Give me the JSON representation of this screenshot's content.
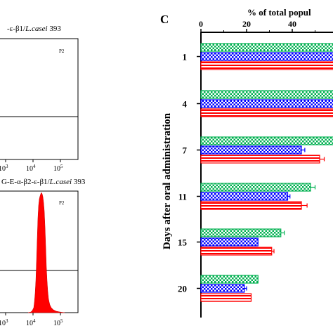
{
  "left_panel": {
    "top_title_prefix": "-ε-β1/",
    "top_title_species": "L.casei",
    "top_title_strain": " 393",
    "top_gate_label": "P2",
    "top_xticks": [
      {
        "base": "10",
        "exp": "3"
      },
      {
        "base": "10",
        "exp": "4"
      },
      {
        "base": "10",
        "exp": "5"
      }
    ],
    "bottom_title_prefix": "G-E-α-β2-ε-β1/",
    "bottom_title_species": "L.casei",
    "bottom_title_strain": " 393",
    "bottom_gate_label": "P2",
    "bottom_xticks": [
      {
        "base": "10",
        "exp": "3"
      },
      {
        "base": "10",
        "exp": "4"
      },
      {
        "base": "10",
        "exp": "5"
      }
    ],
    "histogram_color": "#ff0000"
  },
  "chart_data": {
    "type": "bar",
    "orientation": "horizontal",
    "panel_letter": "C",
    "title": "% of total popul",
    "ylabel": "Days after oral administration",
    "categories": [
      "1",
      "4",
      "7",
      "11",
      "15",
      "20"
    ],
    "x_ticks": [
      0,
      20,
      40
    ],
    "xlim": [
      0,
      60
    ],
    "grid": false,
    "series": [
      {
        "color": "#00b050",
        "pattern": "checker",
        "values": [
          62,
          62,
          62,
          48,
          35,
          25
        ]
      },
      {
        "color": "#0000ff",
        "pattern": "checker",
        "values": [
          62,
          60,
          44,
          38,
          25,
          19
        ]
      },
      {
        "color": "#ff0000",
        "pattern": "stripes",
        "values": [
          62,
          62,
          52,
          44,
          31,
          22
        ]
      }
    ],
    "error_bars": [
      [
        0,
        0,
        0,
        2,
        1.5,
        0
      ],
      [
        0,
        1,
        1.5,
        1,
        0,
        1
      ],
      [
        0,
        0,
        2,
        2.5,
        1,
        0
      ]
    ]
  }
}
